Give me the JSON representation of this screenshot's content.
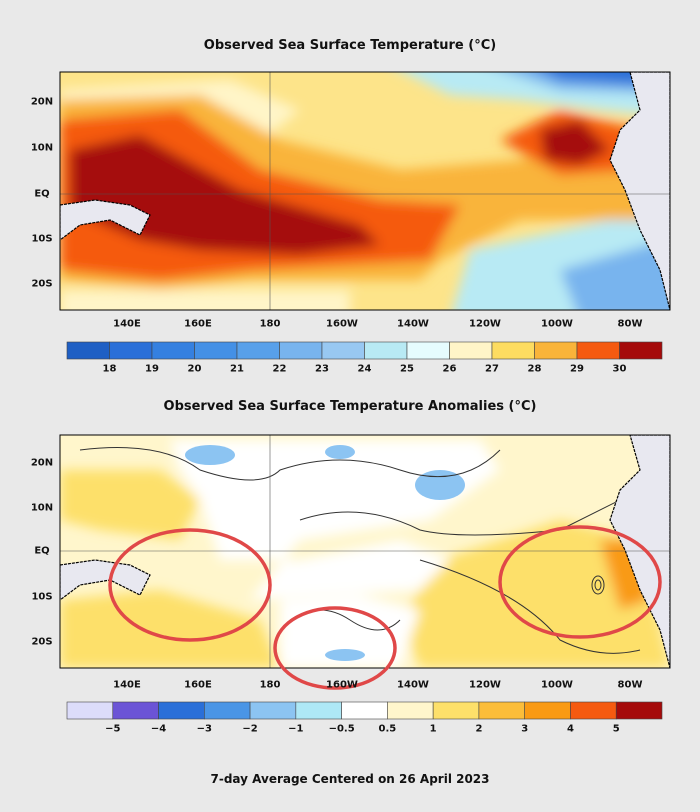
{
  "top_map": {
    "title": "Observed Sea Surface Temperature (°C)",
    "lat_labels": [
      "20N",
      "10N",
      "EQ",
      "10S",
      "20S"
    ],
    "lon_labels": [
      "140E",
      "160E",
      "180",
      "160W",
      "140W",
      "120W",
      "100W",
      "80W"
    ],
    "colorbar": {
      "colors": [
        "#1f5fc4",
        "#2a6fd8",
        "#3580e0",
        "#4490e6",
        "#58a0ea",
        "#78b4ee",
        "#98c8f2",
        "#b8eaf4",
        "#e6fcfe",
        "#fff5c8",
        "#fddc60",
        "#f9b43a",
        "#f55a10",
        "#a50a0a"
      ],
      "ticks": [
        "18",
        "19",
        "20",
        "21",
        "22",
        "23",
        "24",
        "25",
        "26",
        "27",
        "28",
        "29",
        "30"
      ]
    }
  },
  "bottom_map": {
    "title": "Observed Sea Surface Temperature Anomalies (°C)",
    "lat_labels": [
      "20N",
      "10N",
      "EQ",
      "10S",
      "20S"
    ],
    "lon_labels": [
      "140E",
      "160E",
      "180",
      "160W",
      "140W",
      "120W",
      "100W",
      "80W"
    ],
    "colorbar": {
      "colors": [
        "#dcdcfa",
        "#6b54d6",
        "#2a6fd8",
        "#4a95e6",
        "#8cc4f2",
        "#aee8f6",
        "#ffffff",
        "#fff6cc",
        "#fde06a",
        "#fbbd3a",
        "#f99a14",
        "#f55a10",
        "#a50a0a"
      ],
      "ticks": [
        "−5",
        "−4",
        "−3",
        "−2",
        "−1",
        "−0.5",
        "0.5",
        "1",
        "2",
        "3",
        "4",
        "5"
      ]
    },
    "highlight_color": "#e04848"
  },
  "footer": "7-day Average Centered on 26 April 2023"
}
